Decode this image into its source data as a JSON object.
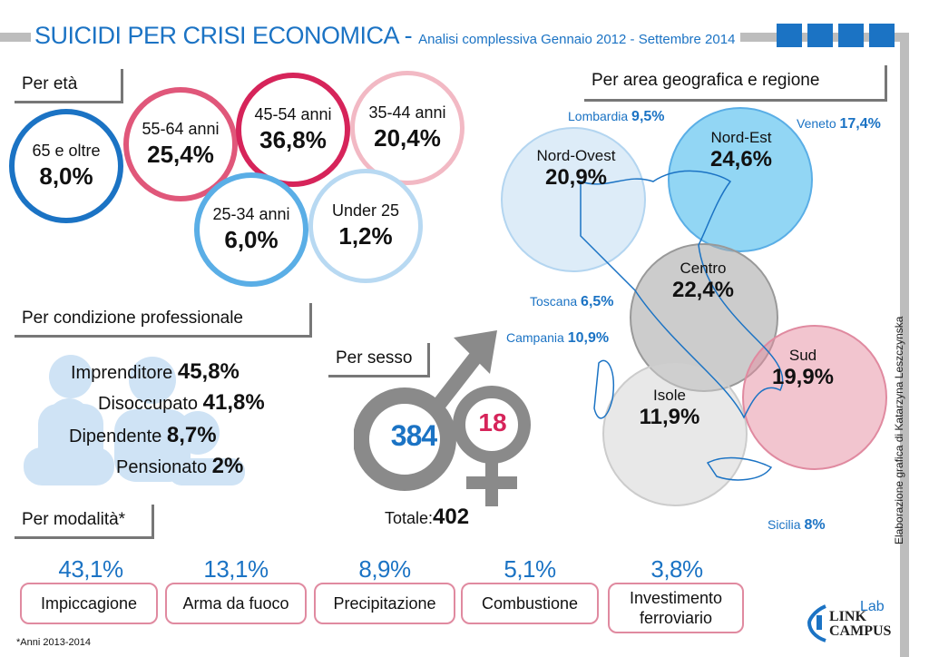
{
  "header": {
    "title": "SUICIDI PER CRISI ECONOMICA",
    "dash": " - ",
    "subtitle": "Analisi complessiva Gennaio 2012 - Settembre 2014"
  },
  "age": {
    "heading": "Per età",
    "groups": [
      {
        "label": "65 e oltre",
        "value": "8,0%"
      },
      {
        "label": "55-64 anni",
        "value": "25,4%"
      },
      {
        "label": "45-54 anni",
        "value": "36,8%"
      },
      {
        "label": "35-44 anni",
        "value": "20,4%"
      },
      {
        "label": "25-34 anni",
        "value": "6,0%"
      },
      {
        "label": "Under 25",
        "value": "1,2%"
      }
    ]
  },
  "profession": {
    "heading": "Per condizione professionale",
    "rows": [
      {
        "label": "Imprenditore",
        "value": "45,8%"
      },
      {
        "label": "Disoccupato",
        "value": "41,8%"
      },
      {
        "label": "Dipendente",
        "value": "8,7%"
      },
      {
        "label": "Pensionato",
        "value": "2%"
      }
    ]
  },
  "sex": {
    "heading": "Per sesso",
    "male": "384",
    "female": "18",
    "total_label": "Totale:",
    "total_value": "402"
  },
  "geo": {
    "heading": "Per area geografica e regione",
    "areas": [
      {
        "label": "Nord-Ovest",
        "value": "20,9%"
      },
      {
        "label": "Nord-Est",
        "value": "24,6%"
      },
      {
        "label": "Centro",
        "value": "22,4%"
      },
      {
        "label": "Sud",
        "value": "19,9%"
      },
      {
        "label": "Isole",
        "value": "11,9%"
      }
    ],
    "regions": [
      {
        "label": "Lombardia",
        "value": "9,5%"
      },
      {
        "label": "Veneto",
        "value": "17,4%"
      },
      {
        "label": "Toscana",
        "value": "6,5%"
      },
      {
        "label": "Campania",
        "value": "10,9%"
      },
      {
        "label": "Sicilia",
        "value": "8%"
      }
    ]
  },
  "mode": {
    "heading": "Per modalità*",
    "items": [
      {
        "pct": "43,1%",
        "label": "Impiccagione"
      },
      {
        "pct": "13,1%",
        "label": "Arma da fuoco"
      },
      {
        "pct": "8,9%",
        "label": "Precipitazione"
      },
      {
        "pct": "5,1%",
        "label": "Combustione"
      },
      {
        "pct": "3,8%",
        "label": "Investimento ferroviario"
      }
    ],
    "footnote": "*Anni 2013-2014"
  },
  "credit": "Elaborazione grafica di Katarzyna Leszczynska",
  "logo": {
    "line1": "LINK",
    "line2": "CAMPUS",
    "sup": "Lab"
  },
  "colors": {
    "blue": "#1b73c4",
    "pink": "#d6245a",
    "grey": "#777777"
  }
}
